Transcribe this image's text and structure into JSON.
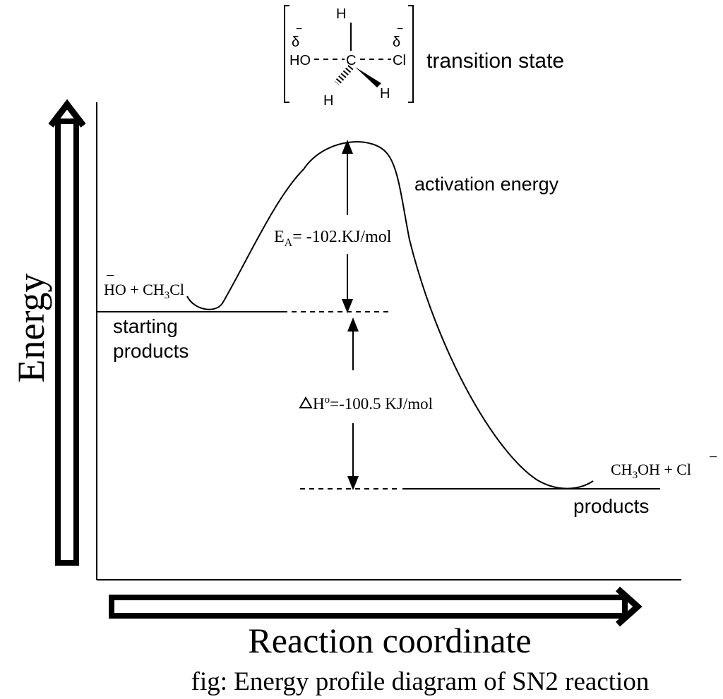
{
  "transition_state": {
    "left_charge": {
      "symbol": "δ",
      "sign": "−"
    },
    "right_charge": {
      "symbol": "δ",
      "sign": "−"
    },
    "nucleophile": "HO",
    "carbon": "C",
    "leaving_group": "Cl",
    "h_top": "H",
    "h_left": "H",
    "h_right": "H",
    "label": "transition state"
  },
  "activation": {
    "label": "activation energy",
    "ea": {
      "symbol": "E",
      "subscript": "A",
      "value": "= -102.KJ/mol"
    }
  },
  "reactants": {
    "sign": "−",
    "formula": [
      "HO + CH",
      "3",
      "Cl"
    ],
    "label": [
      "starting",
      "products"
    ]
  },
  "enthalpy": {
    "symbol": "H",
    "superscript": "o",
    "value": "=-100.5 KJ/mol"
  },
  "products": {
    "formula": [
      "CH",
      "3",
      "OH + Cl"
    ],
    "sign": "−",
    "label": "products"
  },
  "axes": {
    "y": "Energy",
    "x": "Reaction coordinate"
  },
  "caption": "fig: Energy profile diagram of SN2 reaction"
}
